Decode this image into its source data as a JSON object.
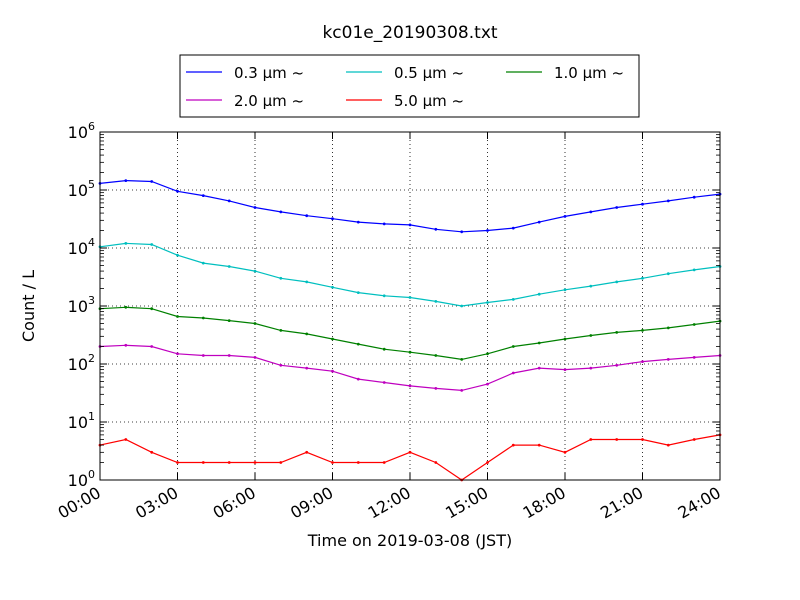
{
  "chart_data": {
    "type": "line",
    "title": "kc01e_20190308.txt",
    "xlabel": "Time on 2019-03-08 (JST)",
    "ylabel": "Count / L",
    "y_scale": "log",
    "ylim": [
      1,
      1000000
    ],
    "xlim": [
      "00:00",
      "24:00"
    ],
    "x_ticks": [
      "00:00",
      "03:00",
      "06:00",
      "09:00",
      "12:00",
      "15:00",
      "18:00",
      "21:00",
      "24:00"
    ],
    "y_ticks": [
      {
        "base": "10",
        "exp": "0"
      },
      {
        "base": "10",
        "exp": "1"
      },
      {
        "base": "10",
        "exp": "2"
      },
      {
        "base": "10",
        "exp": "3"
      },
      {
        "base": "10",
        "exp": "4"
      },
      {
        "base": "10",
        "exp": "5"
      },
      {
        "base": "10",
        "exp": "6"
      }
    ],
    "grid": true,
    "legend_position": "top-center",
    "x": [
      "00:00",
      "01:00",
      "02:00",
      "03:00",
      "04:00",
      "05:00",
      "06:00",
      "07:00",
      "08:00",
      "09:00",
      "10:00",
      "11:00",
      "12:00",
      "13:00",
      "14:00",
      "15:00",
      "16:00",
      "17:00",
      "18:00",
      "19:00",
      "20:00",
      "21:00",
      "22:00",
      "23:00",
      "24:00"
    ],
    "series": [
      {
        "name": "0.3 μm ~",
        "color": "#0000ff",
        "values": [
          130000,
          145000,
          140000,
          95000,
          80000,
          65000,
          50000,
          42000,
          36000,
          32000,
          28000,
          26000,
          25000,
          21000,
          19000,
          20000,
          22000,
          28000,
          35000,
          42000,
          50000,
          57000,
          65000,
          75000,
          85000
        ]
      },
      {
        "name": "0.5 μm ~",
        "color": "#00bfbf",
        "values": [
          10500,
          12000,
          11500,
          7500,
          5500,
          4800,
          4000,
          3000,
          2600,
          2100,
          1700,
          1500,
          1400,
          1200,
          1000,
          1150,
          1300,
          1600,
          1900,
          2200,
          2600,
          3000,
          3600,
          4200,
          4800
        ]
      },
      {
        "name": "1.0 μm ~",
        "color": "#008000",
        "values": [
          900,
          950,
          900,
          660,
          620,
          560,
          500,
          380,
          330,
          270,
          220,
          180,
          160,
          140,
          120,
          150,
          200,
          230,
          270,
          310,
          350,
          380,
          420,
          480,
          550
        ]
      },
      {
        "name": "2.0 μm ~",
        "color": "#bf00bf",
        "values": [
          200,
          210,
          200,
          150,
          140,
          140,
          130,
          95,
          85,
          75,
          55,
          48,
          42,
          38,
          35,
          45,
          70,
          85,
          80,
          85,
          95,
          110,
          120,
          130,
          140
        ]
      },
      {
        "name": "5.0 μm ~",
        "color": "#ff0000",
        "values": [
          4,
          5,
          3,
          2,
          2,
          2,
          2,
          2,
          3,
          2,
          2,
          2,
          3,
          2,
          1,
          2,
          4,
          4,
          3,
          5,
          5,
          5,
          4,
          5,
          6
        ]
      }
    ]
  }
}
